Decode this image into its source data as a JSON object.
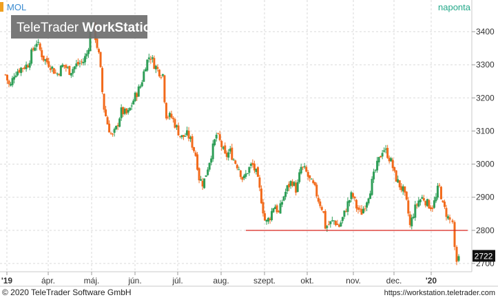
{
  "chart_data": {
    "type": "candlestick",
    "instrument": "MOL",
    "interval_label": "naponta",
    "watermark": {
      "brand_plain": "TeleTrader ",
      "brand_bold": "WorkStation"
    },
    "ylim": [
      2680,
      3460
    ],
    "y_ticks": [
      2700,
      2800,
      2900,
      3000,
      3100,
      3200,
      3300,
      3400
    ],
    "x_tick_labels": [
      "'19",
      "ápr.",
      "máj.",
      "jún.",
      "júl.",
      "aug.",
      "szept.",
      "okt.",
      "nov.",
      "dec.",
      "'20"
    ],
    "last_value_label": "2722",
    "last_value": 2722,
    "support_line": {
      "value": 2800,
      "from": "szept.",
      "to": "end"
    },
    "colors": {
      "up": "#2e9e57",
      "down": "#f26a1b",
      "support": "#d9221b",
      "grid": "#dadada",
      "header_accent": "#f0a020",
      "interval": "#22a889",
      "instrument": "#3a8bd0"
    },
    "close_path": [
      [
        0.0,
        3270
      ],
      [
        0.01,
        3230
      ],
      [
        0.02,
        3275
      ],
      [
        0.035,
        3290
      ],
      [
        0.05,
        3300
      ],
      [
        0.06,
        3340
      ],
      [
        0.07,
        3370
      ],
      [
        0.085,
        3320
      ],
      [
        0.1,
        3300
      ],
      [
        0.115,
        3270
      ],
      [
        0.13,
        3300
      ],
      [
        0.145,
        3280
      ],
      [
        0.16,
        3300
      ],
      [
        0.175,
        3310
      ],
      [
        0.185,
        3340
      ],
      [
        0.195,
        3440
      ],
      [
        0.2,
        3400
      ],
      [
        0.21,
        3330
      ],
      [
        0.215,
        3270
      ],
      [
        0.22,
        3180
      ],
      [
        0.23,
        3120
      ],
      [
        0.24,
        3080
      ],
      [
        0.25,
        3110
      ],
      [
        0.26,
        3160
      ],
      [
        0.275,
        3150
      ],
      [
        0.29,
        3200
      ],
      [
        0.305,
        3240
      ],
      [
        0.315,
        3300
      ],
      [
        0.325,
        3330
      ],
      [
        0.335,
        3300
      ],
      [
        0.345,
        3280
      ],
      [
        0.355,
        3270
      ],
      [
        0.36,
        3150
      ],
      [
        0.375,
        3140
      ],
      [
        0.385,
        3110
      ],
      [
        0.395,
        3080
      ],
      [
        0.41,
        3090
      ],
      [
        0.42,
        3060
      ],
      [
        0.43,
        3020
      ],
      [
        0.435,
        2960
      ],
      [
        0.445,
        2940
      ],
      [
        0.455,
        2990
      ],
      [
        0.465,
        3040
      ],
      [
        0.475,
        3090
      ],
      [
        0.485,
        3060
      ],
      [
        0.495,
        3020
      ],
      [
        0.505,
        3040
      ],
      [
        0.515,
        3010
      ],
      [
        0.525,
        2990
      ],
      [
        0.535,
        2950
      ],
      [
        0.545,
        2980
      ],
      [
        0.555,
        3000
      ],
      [
        0.565,
        2970
      ],
      [
        0.575,
        2900
      ],
      [
        0.585,
        2820
      ],
      [
        0.595,
        2840
      ],
      [
        0.605,
        2880
      ],
      [
        0.615,
        2850
      ],
      [
        0.625,
        2900
      ],
      [
        0.635,
        2930
      ],
      [
        0.645,
        2950
      ],
      [
        0.655,
        2920
      ],
      [
        0.665,
        2990
      ],
      [
        0.675,
        2980
      ],
      [
        0.685,
        2950
      ],
      [
        0.695,
        2930
      ],
      [
        0.705,
        2890
      ],
      [
        0.715,
        2860
      ],
      [
        0.72,
        2810
      ],
      [
        0.73,
        2820
      ],
      [
        0.74,
        2830
      ],
      [
        0.75,
        2810
      ],
      [
        0.76,
        2840
      ],
      [
        0.77,
        2880
      ],
      [
        0.78,
        2910
      ],
      [
        0.79,
        2870
      ],
      [
        0.8,
        2850
      ],
      [
        0.81,
        2880
      ],
      [
        0.82,
        2920
      ],
      [
        0.83,
        2970
      ],
      [
        0.84,
        3010
      ],
      [
        0.85,
        3050
      ],
      [
        0.86,
        3030
      ],
      [
        0.87,
        3000
      ],
      [
        0.875,
        2970
      ],
      [
        0.885,
        2940
      ],
      [
        0.895,
        2920
      ],
      [
        0.905,
        2870
      ],
      [
        0.91,
        2810
      ],
      [
        0.92,
        2860
      ],
      [
        0.93,
        2890
      ],
      [
        0.94,
        2900
      ],
      [
        0.95,
        2880
      ],
      [
        0.96,
        2870
      ],
      [
        0.97,
        2900
      ],
      [
        0.975,
        2940
      ],
      [
        0.98,
        2910
      ],
      [
        0.985,
        2870
      ],
      [
        0.99,
        2860
      ],
      [
        0.995,
        2840
      ],
      [
        1.0,
        2830
      ]
    ],
    "final_candles": [
      {
        "open": 2830,
        "high": 2835,
        "low": 2820,
        "close": 2825
      },
      {
        "open": 2825,
        "high": 2830,
        "low": 2740,
        "close": 2750
      },
      {
        "open": 2750,
        "high": 2755,
        "low": 2695,
        "close": 2705
      },
      {
        "open": 2708,
        "high": 2728,
        "low": 2704,
        "close": 2722
      }
    ]
  },
  "footer": {
    "copyright": "© 2020 TeleTrader Software GmbH",
    "url": "https://workstation.teletrader.com"
  }
}
